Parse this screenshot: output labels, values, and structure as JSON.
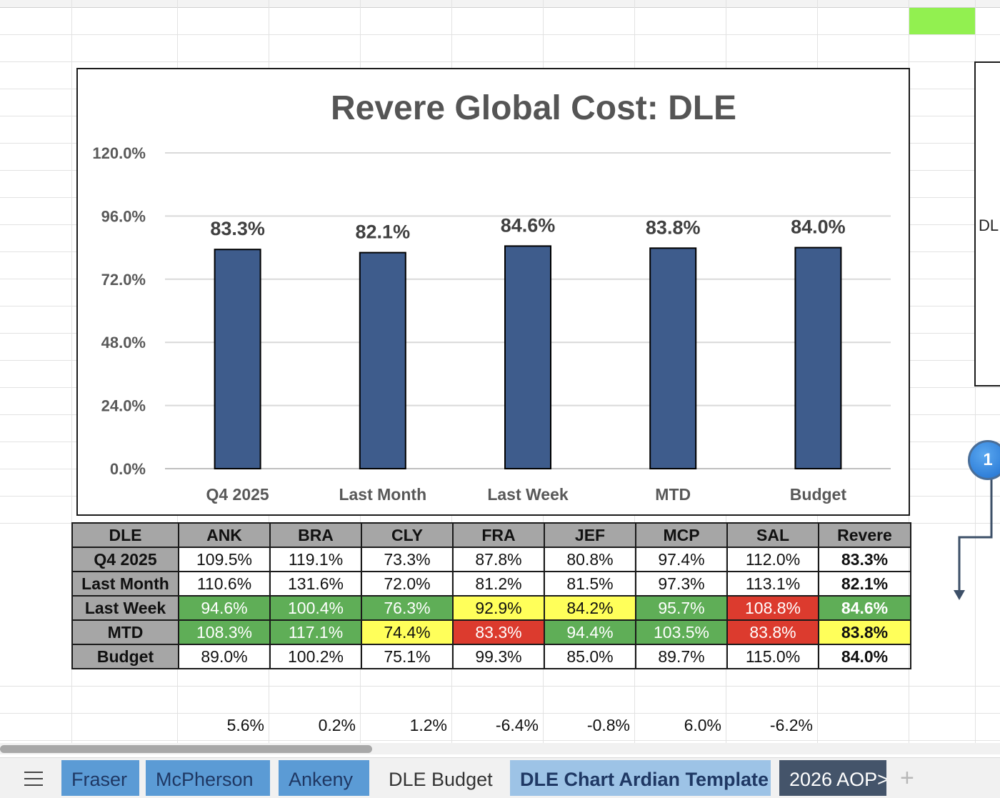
{
  "chart_data": {
    "type": "bar",
    "title": "Revere Global Cost:  DLE",
    "categories": [
      "Q4 2025",
      "Last Month",
      "Last Week",
      "MTD",
      "Budget"
    ],
    "values": [
      83.3,
      82.1,
      84.6,
      83.8,
      84.0
    ],
    "data_labels": [
      "83.3%",
      "82.1%",
      "84.6%",
      "83.8%",
      "84.0%"
    ],
    "ylim": [
      0,
      120
    ],
    "yticks": [
      "0.0%",
      "24.0%",
      "48.0%",
      "72.0%",
      "96.0%",
      "120.0%"
    ],
    "bar_color": "#3e5c8c",
    "grid": true,
    "legend": "none"
  },
  "side_box": {
    "label": "DL"
  },
  "badge": {
    "label": "1"
  },
  "table": {
    "header": [
      "DLE",
      "ANK",
      "BRA",
      "CLY",
      "FRA",
      "JEF",
      "MCP",
      "SAL",
      "Revere"
    ],
    "rows": [
      {
        "label": "Q4 2025",
        "cells": [
          "109.5%",
          "119.1%",
          "73.3%",
          "87.8%",
          "80.8%",
          "97.4%",
          "112.0%"
        ],
        "total": "83.3%",
        "colors": [
          "",
          "",
          "",
          "",
          "",
          "",
          "",
          ""
        ]
      },
      {
        "label": "Last Month",
        "cells": [
          "110.6%",
          "131.6%",
          "72.0%",
          "81.2%",
          "81.5%",
          "97.3%",
          "113.1%"
        ],
        "total": "82.1%",
        "colors": [
          "",
          "",
          "",
          "",
          "",
          "",
          "",
          ""
        ]
      },
      {
        "label": "Last Week",
        "cells": [
          "94.6%",
          "100.4%",
          "76.3%",
          "92.9%",
          "84.2%",
          "95.7%",
          "108.8%"
        ],
        "total": "84.6%",
        "colors": [
          "g",
          "g",
          "g",
          "y",
          "y",
          "g",
          "r",
          "g"
        ]
      },
      {
        "label": "MTD",
        "cells": [
          "108.3%",
          "117.1%",
          "74.4%",
          "83.3%",
          "94.4%",
          "103.5%",
          "83.8%"
        ],
        "total": "83.8%",
        "colors": [
          "g",
          "g",
          "y",
          "r",
          "g",
          "g",
          "r",
          "y"
        ]
      },
      {
        "label": "Budget",
        "cells": [
          "89.0%",
          "100.2%",
          "75.1%",
          "99.3%",
          "85.0%",
          "89.7%",
          "115.0%"
        ],
        "total": "84.0%",
        "colors": [
          "",
          "",
          "",
          "",
          "",
          "",
          "",
          ""
        ]
      }
    ],
    "status_colors": {
      "green": "#5fae57",
      "yellow": "#ffff5a",
      "red": "#dc3b2e"
    }
  },
  "differences": [
    "5.6%",
    "0.2%",
    "1.2%",
    "-6.4%",
    "-0.8%",
    "6.0%",
    "-6.2%"
  ],
  "sheet_tabs": [
    {
      "label": "Fraser",
      "style": "blue"
    },
    {
      "label": "McPherson",
      "style": "blue"
    },
    {
      "label": "Ankeny",
      "style": "blue"
    },
    {
      "label": "DLE Budget",
      "style": "plain"
    },
    {
      "label": "DLE Chart Ardian Template",
      "style": "active"
    },
    {
      "label": "2026 AOP",
      "style": "dark"
    }
  ],
  "tab_menu_icon": "hamburger-icon",
  "add_sheet_icon": "plus-icon"
}
